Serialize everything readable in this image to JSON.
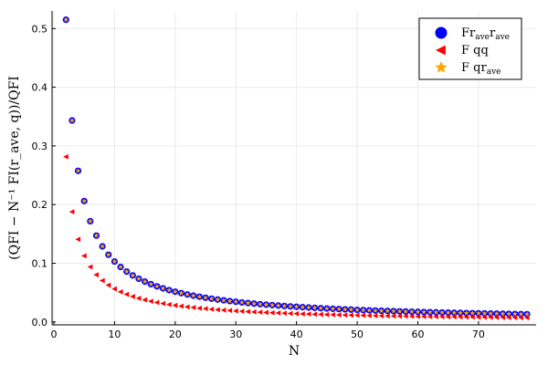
{
  "chart_data": {
    "type": "scatter",
    "xlabel": "N",
    "ylabel": "(QFI − N⁻¹ FI(r_ave, q))/QFI",
    "xlim": [
      -0.3,
      79.5
    ],
    "ylim": [
      -0.005,
      0.53
    ],
    "xticks": [
      0,
      10,
      20,
      30,
      40,
      50,
      60,
      70
    ],
    "yticks": [
      0.0,
      0.1,
      0.2,
      0.3,
      0.4,
      0.5
    ],
    "xtick_labels": [
      "0",
      "10",
      "20",
      "30",
      "40",
      "50",
      "60",
      "70"
    ],
    "ytick_labels": [
      "0.0",
      "0.1",
      "0.2",
      "0.3",
      "0.4",
      "0.5"
    ],
    "grid": true,
    "legend_position": "top-right",
    "series": [
      {
        "name": "Fr_ave r_ave",
        "legend_main": "Fr",
        "legend_sub1": "ave",
        "legend_mid": "r",
        "legend_sub2": "ave",
        "marker": "circle",
        "color": "#0000ff",
        "x": [
          2,
          78
        ],
        "model": "1.03/N",
        "note": "values computed as 1.03/N for N = 2..78"
      },
      {
        "name": "F qq",
        "legend_main": "F qq",
        "marker": "triangle-left",
        "color": "#ff0000",
        "x": [
          2,
          78
        ],
        "model": "0.563/N",
        "note": "values computed as 0.563/N for N = 2..78"
      },
      {
        "name": "F qr_ave",
        "legend_main": "F qr",
        "legend_sub1": "ave",
        "marker": "star",
        "color": "#ffa500",
        "x": [
          2,
          78
        ],
        "model": "1.03/N",
        "note": "values computed as 1.03/N for N = 2..78"
      }
    ]
  }
}
